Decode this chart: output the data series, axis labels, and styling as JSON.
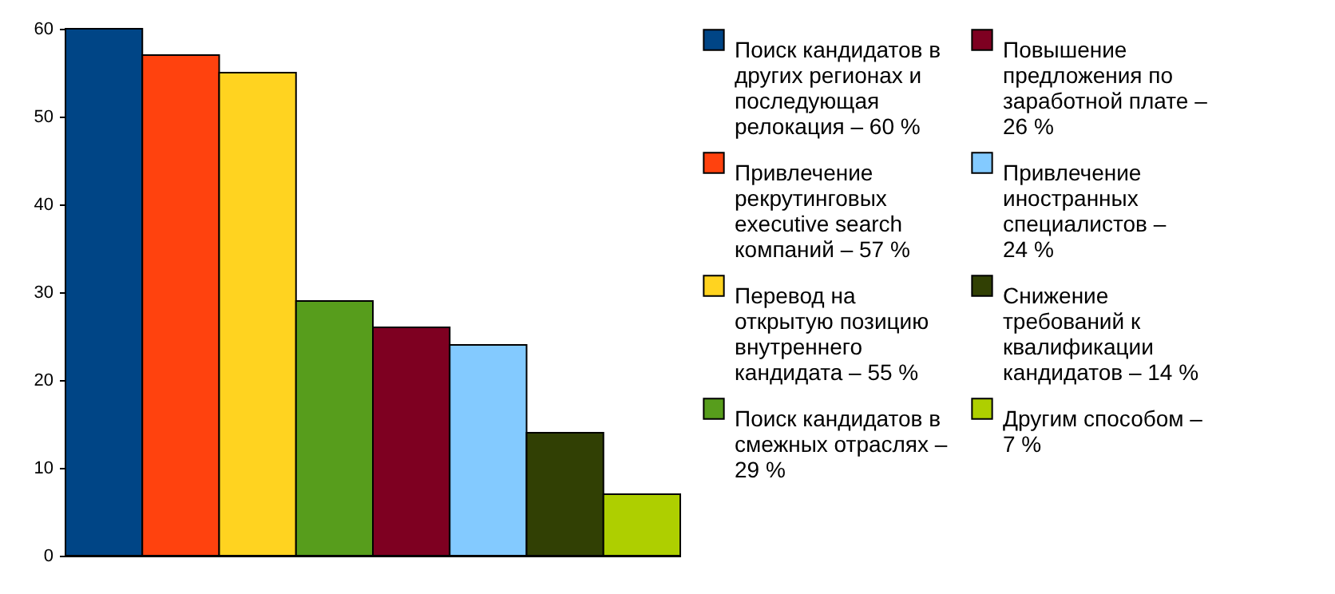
{
  "chart_data": {
    "type": "bar",
    "categories": [
      null
    ],
    "ylim": [
      0,
      60
    ],
    "yticks": [
      0,
      10,
      20,
      30,
      40,
      50,
      60
    ],
    "grid": false,
    "legend": "right",
    "series": [
      {
        "name": "Поиск кандидатов в других регионах и последующая релокация – 60 %",
        "color": "#004586",
        "values": [
          60
        ]
      },
      {
        "name": "Привлечение рекрутинговых executive search компаний – 57 %",
        "color": "#ff420e",
        "values": [
          57
        ]
      },
      {
        "name": "Перевод на открытую позицию внутреннего кандидата – 55 %",
        "color": "#ffd320",
        "values": [
          55
        ]
      },
      {
        "name": "Поиск кандидатов в смежных отраслях – 29 %",
        "color": "#579d1c",
        "values": [
          29
        ]
      },
      {
        "name": "Повышение предложения по заработной плате – 26 %",
        "color": "#7e0021",
        "values": [
          26
        ]
      },
      {
        "name": "Привлечение иностранных специалистов – 24 %",
        "color": "#83caff",
        "values": [
          24
        ]
      },
      {
        "name": "Снижение требований к квалификации кандидатов – 14 %",
        "color": "#314004",
        "values": [
          14
        ]
      },
      {
        "name": "Другим способом – 7 %",
        "color": "#aecf00",
        "values": [
          7
        ]
      }
    ]
  }
}
